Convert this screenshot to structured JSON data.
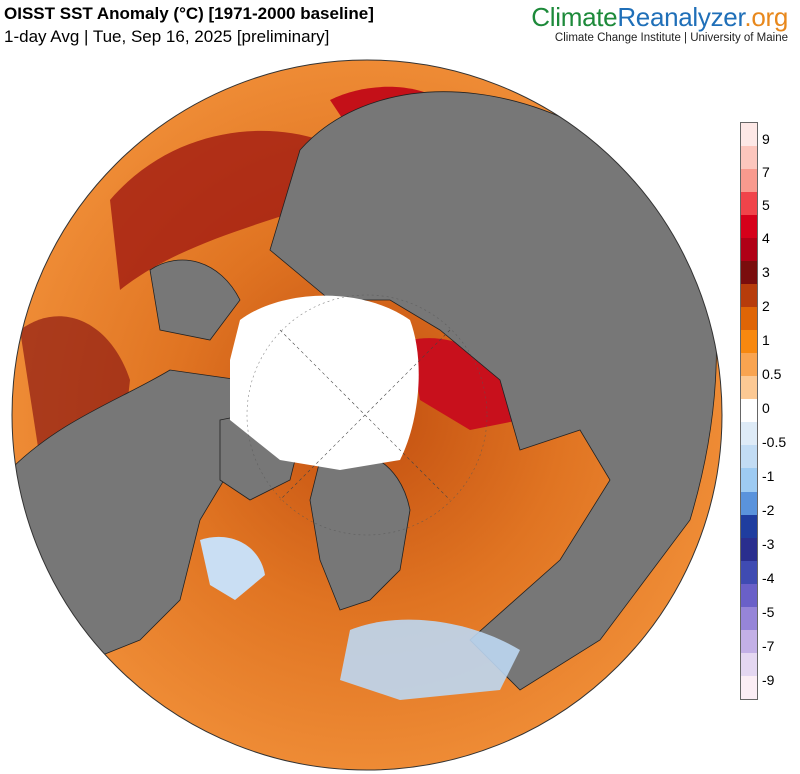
{
  "header": {
    "title": "OISST SST Anomaly (°C) [1971-2000 baseline]",
    "subtitle": "1-day Avg | Tue, Sep 16, 2025 [preliminary]"
  },
  "brand": {
    "part1": "Climate",
    "part2": "Reanalyzer",
    "part3": ".org",
    "tagline": "Climate Change Institute | University of Maine"
  },
  "colorbar": {
    "labels": [
      "9",
      "7",
      "5",
      "4",
      "3",
      "2",
      "1",
      "0.5",
      "0",
      "-0.5",
      "-1",
      "-2",
      "-3",
      "-4",
      "-5",
      "-7",
      "-9"
    ],
    "colors": [
      "#fde8e6",
      "#fcc6bd",
      "#f89a8e",
      "#f0444a",
      "#d6001a",
      "#b00016",
      "#7a0d0d",
      "#b73c0b",
      "#df6506",
      "#f7880f",
      "#f9a450",
      "#fcc994",
      "#ffffff",
      "#deebf7",
      "#c2dcf4",
      "#9ecbf2",
      "#5a93dc",
      "#1f3d9f",
      "#2a2e8e",
      "#3f4bb2",
      "#6a60c8",
      "#9685d8",
      "#c3b0e6",
      "#e4d7f1",
      "#fbeef5"
    ],
    "land_color": "#777777"
  }
}
